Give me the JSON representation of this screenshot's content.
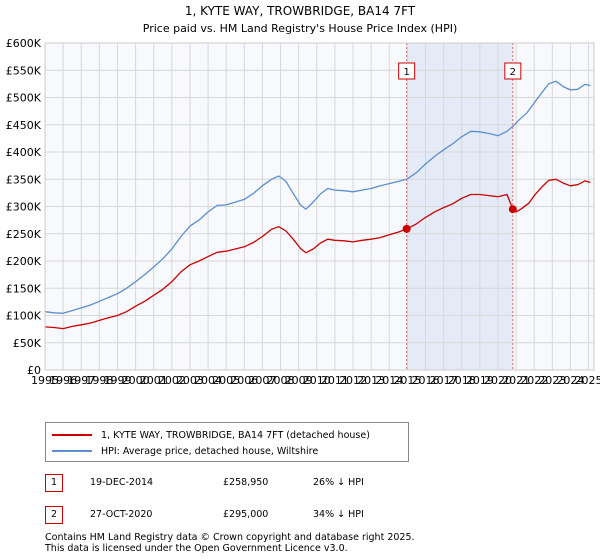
{
  "chart_data": {
    "type": "line",
    "title": "1, KYTE WAY, TROWBRIDGE, BA14 7FT",
    "subtitle": "Price paid vs. HM Land Registry's House Price Index (HPI)",
    "xlabel": "",
    "ylabel": "",
    "xlim": [
      1995,
      2025.3
    ],
    "ylim": [
      0,
      600000
    ],
    "x_ticks": [
      "1995",
      "1996",
      "1997",
      "1998",
      "1999",
      "2000",
      "2001",
      "2002",
      "2003",
      "2004",
      "2005",
      "2006",
      "2007",
      "2008",
      "2009",
      "2010",
      "2011",
      "2012",
      "2013",
      "2014",
      "2015",
      "2016",
      "2017",
      "2018",
      "2019",
      "2020",
      "2021",
      "2022",
      "2023",
      "2024",
      "2025"
    ],
    "y_ticks": [
      {
        "value": 0,
        "label": "£0"
      },
      {
        "value": 50000,
        "label": "£50K"
      },
      {
        "value": 100000,
        "label": "£100K"
      },
      {
        "value": 150000,
        "label": "£150K"
      },
      {
        "value": 200000,
        "label": "£200K"
      },
      {
        "value": 250000,
        "label": "£250K"
      },
      {
        "value": 300000,
        "label": "£300K"
      },
      {
        "value": 350000,
        "label": "£350K"
      },
      {
        "value": 400000,
        "label": "£400K"
      },
      {
        "value": 450000,
        "label": "£450K"
      },
      {
        "value": 500000,
        "label": "£500K"
      },
      {
        "value": 550000,
        "label": "£550K"
      },
      {
        "value": 600000,
        "label": "£600K"
      }
    ],
    "grid": true,
    "shaded_region": {
      "from": 2014.96,
      "to": 2020.82
    },
    "series": [
      {
        "name": "1, KYTE WAY, TROWBRIDGE, BA14 7FT (detached house)",
        "color": "#cc0000",
        "points": [
          [
            1995.0,
            79000
          ],
          [
            1995.5,
            78000
          ],
          [
            1996.0,
            76000
          ],
          [
            1996.5,
            80000
          ],
          [
            1997.0,
            83000
          ],
          [
            1997.5,
            86000
          ],
          [
            1998.0,
            91000
          ],
          [
            1998.5,
            96000
          ],
          [
            1999.0,
            100000
          ],
          [
            1999.5,
            107000
          ],
          [
            2000.0,
            117000
          ],
          [
            2000.5,
            126000
          ],
          [
            2001.0,
            137000
          ],
          [
            2001.5,
            148000
          ],
          [
            2002.0,
            162000
          ],
          [
            2002.5,
            180000
          ],
          [
            2003.0,
            193000
          ],
          [
            2003.5,
            200000
          ],
          [
            2004.0,
            208000
          ],
          [
            2004.5,
            216000
          ],
          [
            2005.0,
            218000
          ],
          [
            2005.5,
            222000
          ],
          [
            2006.0,
            226000
          ],
          [
            2006.5,
            234000
          ],
          [
            2007.0,
            245000
          ],
          [
            2007.5,
            258000
          ],
          [
            2007.9,
            263000
          ],
          [
            2008.3,
            255000
          ],
          [
            2008.7,
            240000
          ],
          [
            2009.1,
            223000
          ],
          [
            2009.4,
            215000
          ],
          [
            2009.8,
            222000
          ],
          [
            2010.2,
            233000
          ],
          [
            2010.6,
            240000
          ],
          [
            2011.0,
            238000
          ],
          [
            2011.5,
            237000
          ],
          [
            2012.0,
            235000
          ],
          [
            2012.5,
            238000
          ],
          [
            2013.0,
            240000
          ],
          [
            2013.5,
            243000
          ],
          [
            2014.0,
            248000
          ],
          [
            2014.5,
            253000
          ],
          [
            2014.96,
            258950
          ],
          [
            2015.5,
            268000
          ],
          [
            2016.0,
            280000
          ],
          [
            2016.5,
            290000
          ],
          [
            2017.0,
            298000
          ],
          [
            2017.5,
            305000
          ],
          [
            2018.0,
            315000
          ],
          [
            2018.5,
            322000
          ],
          [
            2019.0,
            322000
          ],
          [
            2019.5,
            320000
          ],
          [
            2020.0,
            318000
          ],
          [
            2020.5,
            322000
          ],
          [
            2020.82,
            295000
          ],
          [
            2021.0,
            290000
          ],
          [
            2021.3,
            296000
          ],
          [
            2021.7,
            306000
          ],
          [
            2022.0,
            320000
          ],
          [
            2022.4,
            335000
          ],
          [
            2022.8,
            348000
          ],
          [
            2023.2,
            350000
          ],
          [
            2023.6,
            343000
          ],
          [
            2024.0,
            338000
          ],
          [
            2024.4,
            340000
          ],
          [
            2024.8,
            347000
          ],
          [
            2025.1,
            344000
          ]
        ]
      },
      {
        "name": "HPI: Average price, detached house, Wiltshire",
        "color": "#5b8fd1",
        "points": [
          [
            1995.0,
            107000
          ],
          [
            1995.5,
            105000
          ],
          [
            1996.0,
            104000
          ],
          [
            1996.5,
            109000
          ],
          [
            1997.0,
            114000
          ],
          [
            1997.5,
            119000
          ],
          [
            1998.0,
            126000
          ],
          [
            1998.5,
            133000
          ],
          [
            1999.0,
            140000
          ],
          [
            1999.5,
            150000
          ],
          [
            2000.0,
            162000
          ],
          [
            2000.5,
            175000
          ],
          [
            2001.0,
            189000
          ],
          [
            2001.5,
            204000
          ],
          [
            2002.0,
            222000
          ],
          [
            2002.5,
            245000
          ],
          [
            2003.0,
            264000
          ],
          [
            2003.5,
            275000
          ],
          [
            2004.0,
            290000
          ],
          [
            2004.5,
            302000
          ],
          [
            2005.0,
            303000
          ],
          [
            2005.5,
            308000
          ],
          [
            2006.0,
            313000
          ],
          [
            2006.5,
            324000
          ],
          [
            2007.0,
            338000
          ],
          [
            2007.5,
            350000
          ],
          [
            2007.9,
            356000
          ],
          [
            2008.3,
            346000
          ],
          [
            2008.7,
            324000
          ],
          [
            2009.1,
            303000
          ],
          [
            2009.4,
            295000
          ],
          [
            2009.8,
            308000
          ],
          [
            2010.2,
            323000
          ],
          [
            2010.6,
            333000
          ],
          [
            2011.0,
            330000
          ],
          [
            2011.5,
            329000
          ],
          [
            2012.0,
            327000
          ],
          [
            2012.5,
            330000
          ],
          [
            2013.0,
            333000
          ],
          [
            2013.5,
            338000
          ],
          [
            2014.0,
            342000
          ],
          [
            2014.5,
            346000
          ],
          [
            2014.96,
            350000
          ],
          [
            2015.5,
            362000
          ],
          [
            2016.0,
            378000
          ],
          [
            2016.5,
            392000
          ],
          [
            2017.0,
            404000
          ],
          [
            2017.5,
            415000
          ],
          [
            2018.0,
            428000
          ],
          [
            2018.5,
            438000
          ],
          [
            2019.0,
            437000
          ],
          [
            2019.5,
            434000
          ],
          [
            2020.0,
            430000
          ],
          [
            2020.5,
            438000
          ],
          [
            2020.82,
            447000
          ],
          [
            2021.2,
            460000
          ],
          [
            2021.6,
            472000
          ],
          [
            2022.0,
            490000
          ],
          [
            2022.4,
            508000
          ],
          [
            2022.8,
            525000
          ],
          [
            2023.2,
            530000
          ],
          [
            2023.6,
            520000
          ],
          [
            2024.0,
            514000
          ],
          [
            2024.4,
            515000
          ],
          [
            2024.8,
            524000
          ],
          [
            2025.1,
            522000
          ]
        ]
      }
    ],
    "markers": [
      {
        "label": "1",
        "x": 2014.96,
        "y": 258950
      },
      {
        "label": "2",
        "x": 2020.82,
        "y": 295000
      }
    ]
  },
  "legend": {
    "property_label": "1, KYTE WAY, TROWBRIDGE, BA14 7FT (detached house)",
    "hpi_label": "HPI: Average price, detached house, Wiltshire"
  },
  "transactions": [
    {
      "num": "1",
      "date": "19-DEC-2014",
      "price": "£258,950",
      "hpi": "26% ↓ HPI"
    },
    {
      "num": "2",
      "date": "27-OCT-2020",
      "price": "£295,000",
      "hpi": "34% ↓ HPI"
    }
  ],
  "footer": {
    "line1": "Contains HM Land Registry data © Crown copyright and database right 2025.",
    "line2": "This data is licensed under the Open Government Licence v3.0."
  }
}
